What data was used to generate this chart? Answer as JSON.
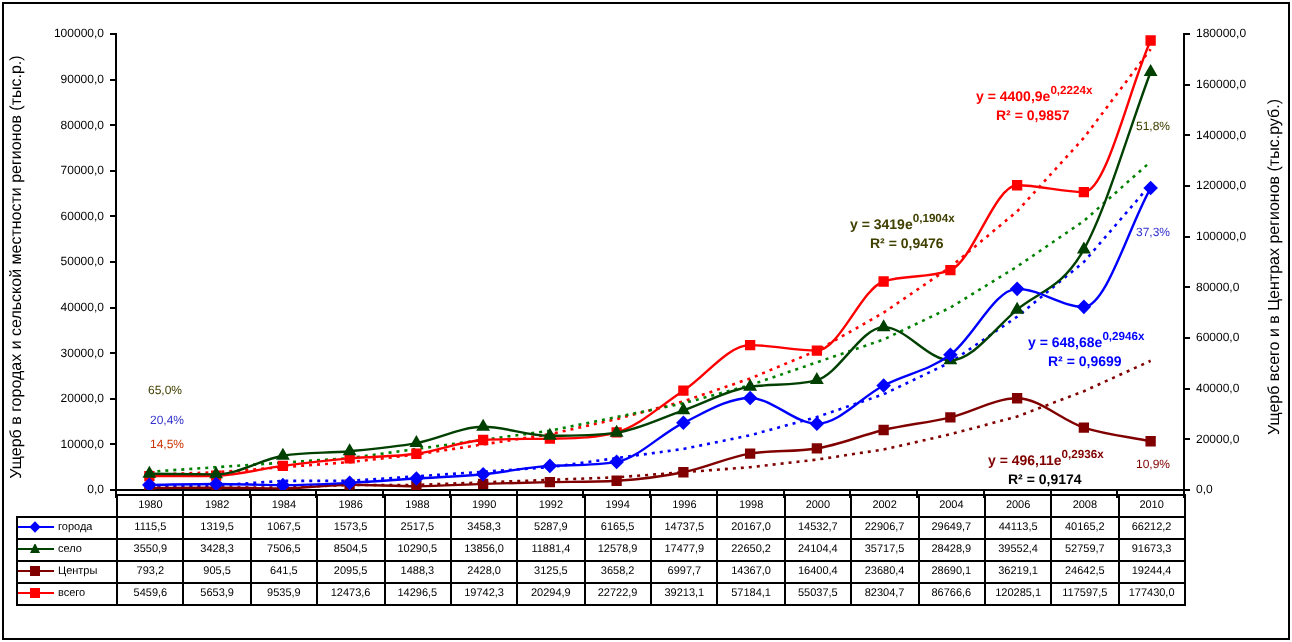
{
  "chart_data": {
    "type": "line",
    "ylabel": "Ущерб в городах и сельской местности регионов (тыс.р.)",
    "y2label": "Ущерб всего и в Центрах регионов (тыс.руб.)",
    "categories": [
      "1980",
      "1982",
      "1984",
      "1986",
      "1988",
      "1990",
      "1992",
      "1994",
      "1996",
      "1998",
      "2000",
      "2002",
      "2004",
      "2006",
      "2008",
      "2010"
    ],
    "ylim": [
      0,
      100000
    ],
    "yticks": [
      {
        "value": 0,
        "label": "0,0"
      },
      {
        "value": 10000,
        "label": "10000,0"
      },
      {
        "value": 20000,
        "label": "20000,0"
      },
      {
        "value": 30000,
        "label": "30000,0"
      },
      {
        "value": 40000,
        "label": "40000,0"
      },
      {
        "value": 50000,
        "label": "50000,0"
      },
      {
        "value": 60000,
        "label": "60000,0"
      },
      {
        "value": 70000,
        "label": "70000,0"
      },
      {
        "value": 80000,
        "label": "80000,0"
      },
      {
        "value": 90000,
        "label": "90000,0"
      },
      {
        "value": 100000,
        "label": "100000,0"
      }
    ],
    "y2lim": [
      0,
      180000
    ],
    "y2ticks": [
      {
        "value": 0,
        "label": "0,0"
      },
      {
        "value": 20000,
        "label": "20000,0"
      },
      {
        "value": 40000,
        "label": "40000,0"
      },
      {
        "value": 60000,
        "label": "60000,0"
      },
      {
        "value": 80000,
        "label": "80000,0"
      },
      {
        "value": 100000,
        "label": "100000,0"
      },
      {
        "value": 120000,
        "label": "120000,0"
      },
      {
        "value": 140000,
        "label": "140000,0"
      },
      {
        "value": 160000,
        "label": "160000,0"
      },
      {
        "value": 180000,
        "label": "180000,0"
      }
    ],
    "grid": false,
    "legend": "bottom",
    "series": [
      {
        "name": "города",
        "color": "#0000ff",
        "marker": "diamond",
        "values": [
          1115.5,
          1319.5,
          1067.5,
          1573.5,
          2517.5,
          3458.3,
          5287.9,
          6165.5,
          14737.5,
          20167.0,
          14532.7,
          22906.7,
          29649.7,
          44113.5,
          40165.2,
          66212.2
        ],
        "value_labels": [
          "1115,5",
          "1319,5",
          "1067,5",
          "1573,5",
          "2517,5",
          "3458,3",
          "5287,9",
          "6165,5",
          "14737,5",
          "20167,0",
          "14532,7",
          "22906,7",
          "29649,7",
          "44113,5",
          "40165,2",
          "66212,2"
        ]
      },
      {
        "name": "село",
        "color": "#004000",
        "marker": "triangle",
        "values": [
          3550.9,
          3428.3,
          7506.5,
          8504.5,
          10290.5,
          13856.0,
          11881.4,
          12578.9,
          17477.9,
          22650.2,
          24104.4,
          35717.5,
          28428.9,
          39552.4,
          52759.7,
          91673.3
        ],
        "value_labels": [
          "3550,9",
          "3428,3",
          "7506,5",
          "8504,5",
          "10290,5",
          "13856,0",
          "11881,4",
          "12578,9",
          "17477,9",
          "22650,2",
          "24104,4",
          "35717,5",
          "28428,9",
          "39552,4",
          "52759,7",
          "91673,3"
        ]
      },
      {
        "name": "Центры",
        "color": "#800000",
        "marker": "square",
        "axis": "y2",
        "values": [
          793.2,
          905.5,
          641.5,
          2095.5,
          1488.3,
          2428.0,
          3125.5,
          3658.2,
          6997.7,
          14367.0,
          16400.4,
          23680.4,
          28690.1,
          36219.1,
          24642.5,
          19244.4
        ],
        "value_labels": [
          "793,2",
          "905,5",
          "641,5",
          "2095,5",
          "1488,3",
          "2428,0",
          "3125,5",
          "3658,2",
          "6997,7",
          "14367,0",
          "16400,4",
          "23680,4",
          "28690,1",
          "36219,1",
          "24642,5",
          "19244,4"
        ]
      },
      {
        "name": "всего",
        "color": "#ff0000",
        "marker": "square",
        "axis": "y2",
        "values": [
          5459.6,
          5653.9,
          9535.9,
          12473.6,
          14296.5,
          19742.3,
          20294.9,
          22722.9,
          39213.1,
          57184.1,
          55037.5,
          82304.7,
          86766.6,
          120285.1,
          117597.5,
          177430.0
        ],
        "value_labels": [
          "5459,6",
          "5653,9",
          "9535,9",
          "12473,6",
          "14296,5",
          "19742,3",
          "20294,9",
          "22722,9",
          "39213,1",
          "57184,1",
          "55037,5",
          "82304,7",
          "86766,6",
          "120285,1",
          "117597,5",
          "177430,0"
        ]
      },
      {
        "type": "line",
        "color": "#0000ff",
        "marker": "none",
        "line_style": "dotted",
        "values": [
          1000,
          1000,
          2000,
          2000,
          3000,
          4000,
          5000,
          7000,
          9000,
          12000,
          16000,
          21000,
          28000,
          38000,
          50000,
          67000
        ]
      },
      {
        "type": "line",
        "color": "#008000",
        "marker": "none",
        "line_style": "dotted",
        "values": [
          4000,
          5000,
          6000,
          7000,
          9000,
          11000,
          13000,
          16000,
          19000,
          23000,
          28000,
          33000,
          40000,
          49000,
          59000,
          72000
        ]
      },
      {
        "type": "line",
        "color": "#800000",
        "marker": "none",
        "line_style": "dotted",
        "axis": "y2",
        "values": [
          1000,
          1000,
          1000,
          2000,
          2000,
          3000,
          4000,
          5000,
          7000,
          9000,
          12000,
          16000,
          22000,
          29000,
          39000,
          51000
        ]
      },
      {
        "type": "line",
        "color": "#ff0000",
        "marker": "none",
        "line_style": "dotted",
        "axis": "y2",
        "values": [
          6000,
          7000,
          9000,
          11000,
          14000,
          18000,
          22000,
          28000,
          35000,
          44000,
          55000,
          70000,
          88000,
          110000,
          139000,
          174000
        ]
      }
    ],
    "annotations": [
      "65,0%",
      "20,4%",
      "14,5%",
      "51,8%",
      "37,3%",
      "10,9%",
      "y = 4400,9e$^{0,2224x}$",
      "R² = 0,9857",
      "y = 3419e$^{0,1904x}$",
      "R² = 0,9476",
      "y = 648,68e$^{0,2946x}$",
      "R² = 0,9699",
      "y = 496,11e$^{0,2936x}$",
      "R² = 0,9174"
    ]
  }
}
